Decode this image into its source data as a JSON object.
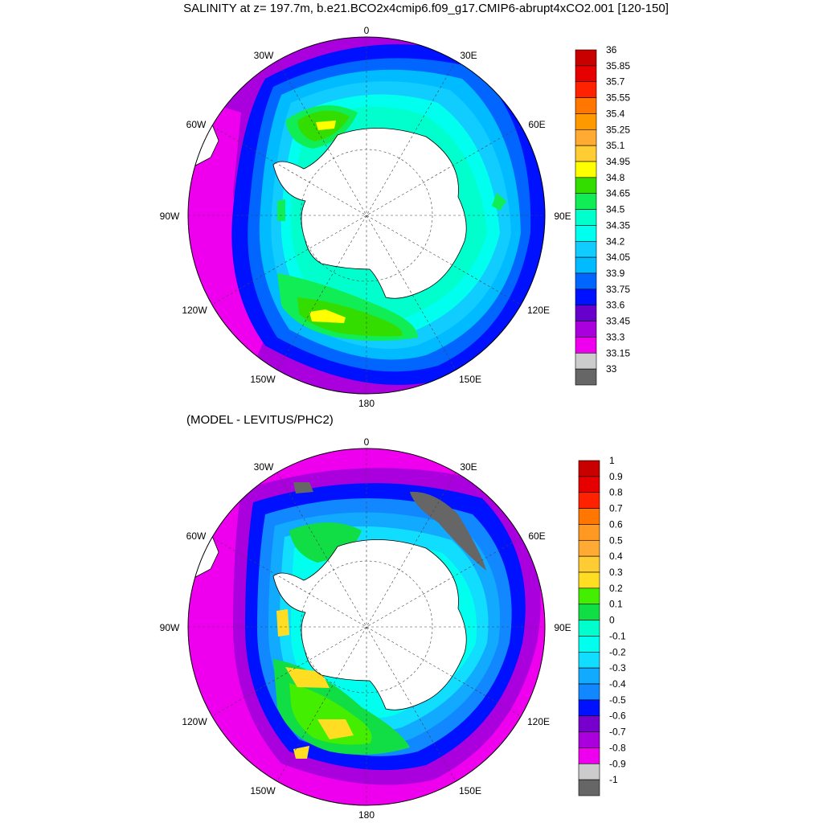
{
  "title": "SALINITY at z= 197.7m, b.e21.BCO2x4cmip6.f09_g17.CMIP6-abrupt4xCO2.001 [120-150]",
  "subtitle": "(MODEL - LEVITUS/PHC2)",
  "longitude_labels": {
    "top": "0",
    "tr30": "30E",
    "tr60": "60E",
    "right": "90E",
    "br120": "120E",
    "br150": "150E",
    "bottom": "180",
    "bl150": "150W",
    "bl120": "120W",
    "left": "90W",
    "tl60": "60W",
    "tl30": "30W"
  },
  "colorbar_top": {
    "labels": [
      "36",
      "35.85",
      "35.7",
      "35.55",
      "35.4",
      "35.25",
      "35.1",
      "34.95",
      "34.8",
      "34.65",
      "34.5",
      "34.35",
      "34.2",
      "34.05",
      "33.9",
      "33.75",
      "33.6",
      "33.45",
      "33.3",
      "33.15",
      "33"
    ],
    "colors": [
      "#c80000",
      "#e60000",
      "#ff2200",
      "#ff7700",
      "#ff9900",
      "#ffaa33",
      "#ffcc33",
      "#ffff00",
      "#33dd00",
      "#11ee55",
      "#00ffcc",
      "#00ffee",
      "#11ccff",
      "#00bbff",
      "#0066ff",
      "#0011ff",
      "#6600cc",
      "#aa00dd",
      "#ee00ee",
      "#cccccc",
      "#666666"
    ]
  },
  "colorbar_bottom": {
    "labels": [
      "1",
      "0.9",
      "0.8",
      "0.7",
      "0.6",
      "0.5",
      "0.4",
      "0.3",
      "0.2",
      "0.1",
      "0",
      "-0.1",
      "-0.2",
      "-0.3",
      "-0.4",
      "-0.5",
      "-0.6",
      "-0.7",
      "-0.8",
      "-0.9",
      "-1"
    ],
    "colors": [
      "#c80000",
      "#e60000",
      "#ff2200",
      "#ff7700",
      "#ff9922",
      "#ffaa33",
      "#ffcc33",
      "#ffdd22",
      "#44ee00",
      "#11dd44",
      "#00ffcc",
      "#00ffee",
      "#11ddff",
      "#11aaff",
      "#1188ff",
      "#0011ff",
      "#7700cc",
      "#aa00dd",
      "#ee00ee",
      "#cccccc",
      "#666666"
    ]
  }
}
